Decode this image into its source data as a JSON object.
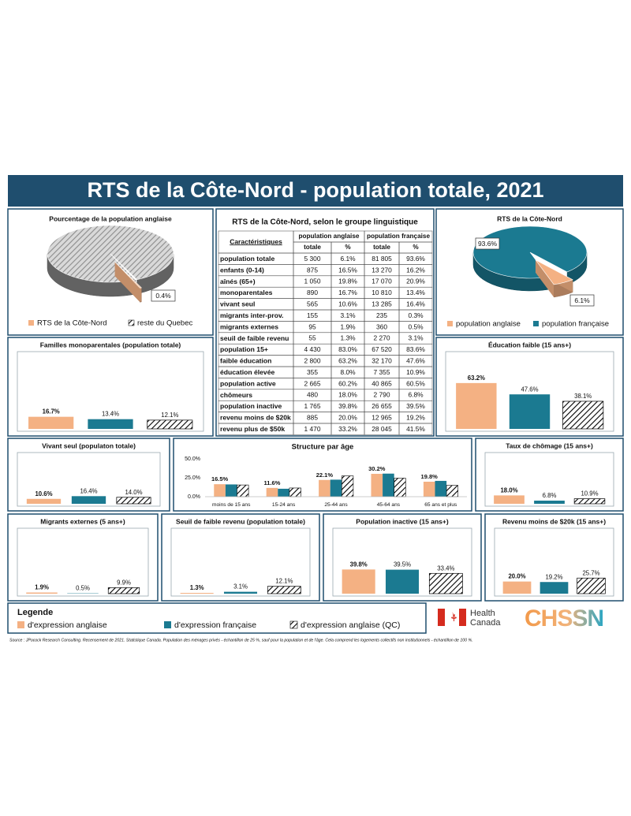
{
  "title": "RTS de la Côte-Nord - population totale, 2021",
  "legend": {
    "title": "Legende",
    "items": [
      {
        "label": "d'expression anglaise",
        "color": "#f4b183"
      },
      {
        "label": "d'expression française",
        "color": "#1b7a91"
      },
      {
        "label": "d'expression anglaise (QC)",
        "color": "#000000",
        "hatched": true
      }
    ]
  },
  "table": {
    "title": "RTS de la Côte-Nord, selon le groupe linguistique",
    "columns": {
      "label": "Caractéristiques",
      "groups": [
        {
          "label": "population anglaise",
          "sub": [
            "totale",
            "%"
          ]
        },
        {
          "label": "population française",
          "sub": [
            "totale",
            "%"
          ]
        }
      ]
    },
    "rows": [
      [
        "population totale",
        "5 300",
        "6.1%",
        "81 805",
        "93.6%"
      ],
      [
        "enfants (0-14)",
        "875",
        "16.5%",
        "13 270",
        "16.2%"
      ],
      [
        "aînés (65+)",
        "1 050",
        "19.8%",
        "17 070",
        "20.9%"
      ],
      [
        "monoparentales",
        "890",
        "16.7%",
        "10 810",
        "13.4%"
      ],
      [
        "vivant seul",
        "565",
        "10.6%",
        "13 285",
        "16.4%"
      ],
      [
        "migrants inter-prov.",
        "155",
        "3.1%",
        "235",
        "0.3%"
      ],
      [
        "migrants externes",
        "95",
        "1.9%",
        "360",
        "0.5%"
      ],
      [
        "seuil de faible revenu",
        "55",
        "1.3%",
        "2 270",
        "3.1%"
      ],
      [
        "population 15+",
        "4 430",
        "83.0%",
        "67 520",
        "83.6%"
      ],
      [
        "faible éducation",
        "2 800",
        "63.2%",
        "32 170",
        "47.6%"
      ],
      [
        "éducation élevée",
        "355",
        "8.0%",
        "7 355",
        "10.9%"
      ],
      [
        "population active",
        "2 665",
        "60.2%",
        "40 865",
        "60.5%"
      ],
      [
        "chômeurs",
        "480",
        "18.0%",
        "2 790",
        "6.8%"
      ],
      [
        "population inactive",
        "1 765",
        "39.8%",
        "26 655",
        "39.5%"
      ],
      [
        "revenu moins de $20k",
        "885",
        "20.0%",
        "12 965",
        "19.2%"
      ],
      [
        "revenu plus de $50k",
        "1 470",
        "33.2%",
        "28 045",
        "41.5%"
      ]
    ]
  },
  "chart_data": [
    {
      "type": "pie",
      "title": "Pourcentage de la population anglaise",
      "categories": [
        "RTS de la Côte-Nord",
        "reste du Quebec"
      ],
      "values": [
        0.4,
        99.6
      ],
      "value_labels": [
        "0.4%",
        null
      ],
      "colors": [
        "#f4b183",
        "#8c8c8c"
      ],
      "hatched": [
        false,
        true
      ]
    },
    {
      "type": "pie",
      "title": "RTS de la Côte-Nord",
      "categories": [
        "population anglaise",
        "population française"
      ],
      "values": [
        6.1,
        93.6
      ],
      "value_labels": [
        "6.1%",
        "93.6%"
      ],
      "colors": [
        "#f4b183",
        "#1b7a91"
      ],
      "hatched": [
        false,
        false
      ]
    },
    {
      "type": "bar",
      "title": "Familles monoparentales (population totale)",
      "values": [
        16.7,
        13.4,
        12.1
      ],
      "value_labels": [
        "16.7%",
        "13.4%",
        "12.1%"
      ],
      "ylim": [
        0,
        100
      ]
    },
    {
      "type": "bar",
      "title": "Éducation faible (15 ans+)",
      "values": [
        63.2,
        47.6,
        38.1
      ],
      "value_labels": [
        "63.2%",
        "47.6%",
        "38.1%"
      ],
      "ylim": [
        0,
        100
      ]
    },
    {
      "type": "bar",
      "title": "Vivant seul (populaton totale)",
      "values": [
        10.6,
        16.4,
        14.0
      ],
      "value_labels": [
        "10.6%",
        "16.4%",
        "14.0%"
      ],
      "ylim": [
        0,
        100
      ]
    },
    {
      "type": "grouped-bar",
      "title": "Structure par âge",
      "categories": [
        "moins de 15 ans",
        "15-24 ans",
        "25-44 ans",
        "45-64 ans",
        "65 ans et plus"
      ],
      "series": [
        {
          "values": [
            16.5,
            11.6,
            22.1,
            30.2,
            19.8
          ],
          "value_labels": [
            "16.5%",
            "11.6%",
            "22.1%",
            "30.2%",
            "19.8%"
          ]
        },
        {
          "values": [
            16.2,
            10.5,
            22.5,
            30.5,
            20.9
          ]
        },
        {
          "values": [
            15.5,
            11.5,
            27.5,
            24.5,
            15.0
          ]
        }
      ],
      "ylim": [
        0,
        50
      ],
      "yticks": [
        {
          "value": 0,
          "label": "0.0%"
        },
        {
          "value": 25,
          "label": "25.0%"
        },
        {
          "value": 50,
          "label": "50.0%"
        }
      ],
      "grid": false
    },
    {
      "type": "bar",
      "title": "Taux de chômage (15 ans+)",
      "values": [
        18.0,
        6.8,
        10.9
      ],
      "value_labels": [
        "18.0%",
        "6.8%",
        "10.9%"
      ],
      "ylim": [
        0,
        100
      ]
    },
    {
      "type": "bar",
      "title": "Migrants externes (5 ans+)",
      "values": [
        1.9,
        0.5,
        9.9
      ],
      "value_labels": [
        "1.9%",
        "0.5%",
        "9.9%"
      ],
      "ylim": [
        0,
        100
      ]
    },
    {
      "type": "bar",
      "title": "Seuil de faible revenu (population totale)",
      "values": [
        1.3,
        3.1,
        12.1
      ],
      "value_labels": [
        "1.3%",
        "3.1%",
        "12.1%"
      ],
      "ylim": [
        0,
        100
      ]
    },
    {
      "type": "bar",
      "title": "Population inactive (15 ans+)",
      "values": [
        39.8,
        39.5,
        33.4
      ],
      "value_labels": [
        "39.8%",
        "39.5%",
        "33.4%"
      ],
      "ylim": [
        0,
        100
      ]
    },
    {
      "type": "bar",
      "title": "Revenu moins de $20k (15 ans+)",
      "values": [
        20.0,
        19.2,
        25.7
      ],
      "value_labels": [
        "20.0%",
        "19.2%",
        "25.7%"
      ],
      "ylim": [
        0,
        100
      ]
    }
  ],
  "logos": {
    "health_canada": [
      "Health",
      "Canada"
    ],
    "chssn": "CHSSN"
  },
  "source": "Source : JPocock Research Consulting. Recensement de 2021. Statistique Canada. Population des ménages privés - échantillon de 25 %, sauf pour la population et de l'âge. Cela comprend les logements collectifs non institutionnels - échantillon de 100 %."
}
